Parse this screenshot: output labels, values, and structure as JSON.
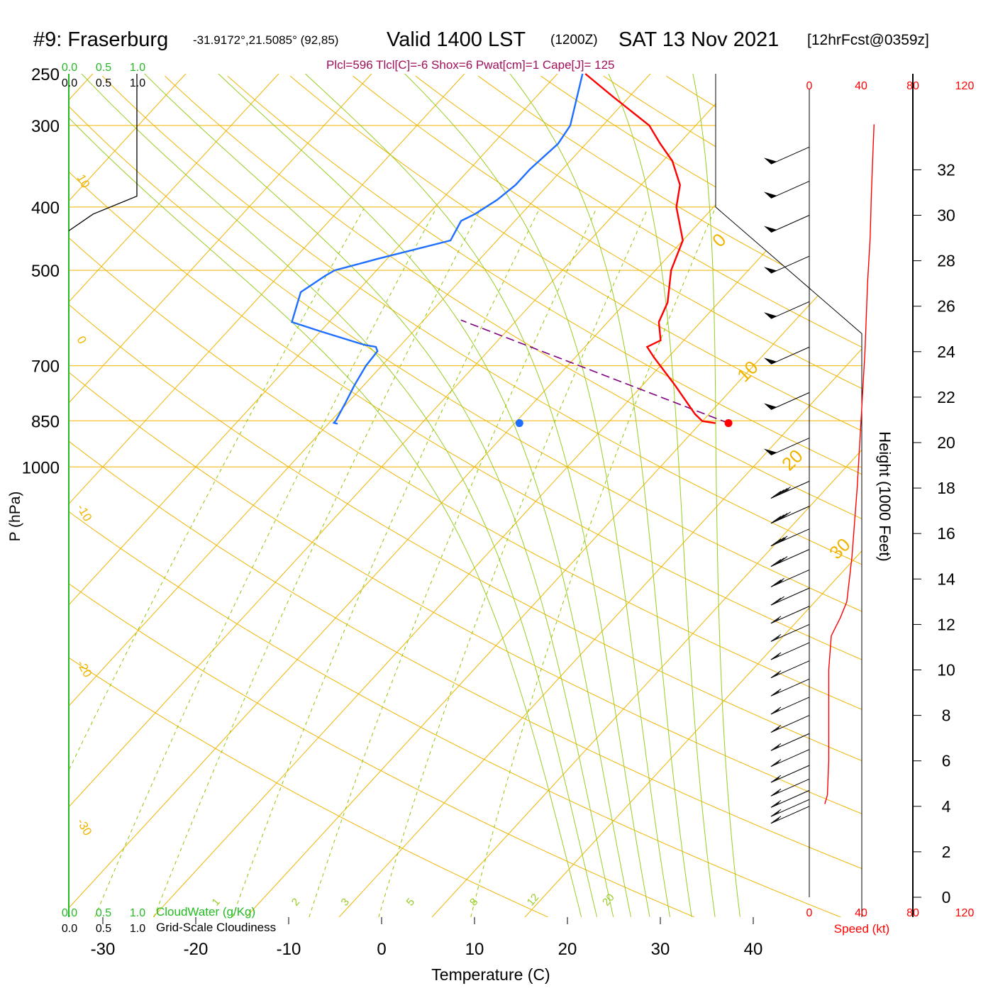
{
  "header": {
    "station": "#9: Fraserburg",
    "coords": "-31.9172°,21.5085° (92,85)",
    "valid": "Valid 1400 LST",
    "zulu": "(1200Z)",
    "date": "SAT 13 Nov 2021",
    "forecast": "[12hrFcst@0359z]"
  },
  "indices": "Plcl=596 Tlcl[C]=-6 Shox=6 Pwat[cm]=1 Cape[J]= 125",
  "colors": {
    "temperature": "#ff0000",
    "dewpoint": "#1e6eff",
    "parcel": "#800080",
    "isotherm": "#f0b400",
    "mixing_ratio": "#8cc800",
    "moist_adiabat": "#99cc22",
    "cloud_water": "#22bb22",
    "wind_speed": "#ff0000",
    "indices": "#a0105a"
  },
  "labels": {
    "pressure_axis": "P (hPa)",
    "temperature_axis": "Temperature (C)",
    "height_axis": "Height (1000 Feet)",
    "cloud_water": "CloudWater (g/Kg)",
    "cloudiness": "Grid-Scale Cloudiness",
    "speed": "Speed (kt)"
  },
  "chart_data": {
    "type": "line",
    "title": "#9: Fraserburg  Valid 1400 LST (1200Z) SAT 13 Nov 2021",
    "xlabel": "Temperature (C)",
    "ylabel": "P (hPa)",
    "pressure_ticks": [
      250,
      300,
      400,
      500,
      700,
      850,
      1000
    ],
    "temperature_ticks": [
      -30,
      -20,
      -10,
      0,
      10,
      20,
      30,
      40
    ],
    "height_ticks": [
      0,
      2,
      4,
      6,
      8,
      10,
      12,
      14,
      16,
      18,
      20,
      22,
      24,
      26,
      28,
      30,
      32
    ],
    "speed_ticks": [
      0,
      40,
      80,
      120
    ],
    "cloud_ticks": [
      "0.0",
      "0.5",
      "1.0"
    ],
    "isotherm_labels": [
      "-30",
      "-20",
      "-10",
      "0",
      "10",
      "20",
      "30",
      "0",
      "10",
      "20",
      "30"
    ],
    "mixing_ratio_labels": [
      "1",
      "2",
      "3",
      "5",
      "8",
      "12",
      "20"
    ],
    "series": [
      {
        "name": "Temperature",
        "values": [
          [
            857,
            31.6
          ],
          [
            851,
            30.0
          ],
          [
            830,
            28.5
          ],
          [
            750,
            23.5
          ],
          [
            680,
            18.5
          ],
          [
            655,
            16.7
          ],
          [
            640,
            17.5
          ],
          [
            600,
            15.5
          ],
          [
            560,
            14.5
          ],
          [
            500,
            11.7
          ],
          [
            450,
            10.0
          ],
          [
            400,
            6.0
          ],
          [
            370,
            4.2
          ],
          [
            340,
            1.0
          ],
          [
            320,
            -2.0
          ],
          [
            300,
            -5.0
          ],
          [
            270,
            -12.0
          ],
          [
            250,
            -17.0
          ]
        ]
      },
      {
        "name": "Dewpoint",
        "values": [
          [
            859,
            -9.0
          ],
          [
            856,
            -9.5
          ],
          [
            850,
            -9.5
          ],
          [
            800,
            -10.2
          ],
          [
            750,
            -11.0
          ],
          [
            700,
            -11.7
          ],
          [
            665,
            -11.9
          ],
          [
            655,
            -12.5
          ],
          [
            650,
            -14.0
          ],
          [
            620,
            -20.0
          ],
          [
            600,
            -24.0
          ],
          [
            540,
            -26.0
          ],
          [
            510,
            -25.0
          ],
          [
            500,
            -24.5
          ],
          [
            480,
            -21.0
          ],
          [
            450,
            -15.0
          ],
          [
            420,
            -15.8
          ],
          [
            410,
            -15.0
          ],
          [
            390,
            -14.0
          ],
          [
            370,
            -13.5
          ],
          [
            350,
            -13.5
          ],
          [
            320,
            -13.0
          ],
          [
            300,
            -13.5
          ],
          [
            250,
            -17.3
          ]
        ]
      },
      {
        "name": "Parcel",
        "values": [
          [
            857,
            33.0
          ],
          [
            596,
            -6.0
          ]
        ]
      }
    ],
    "surface_temperature_dot": [
      857,
      33.0
    ],
    "surface_dewpoint_dot": [
      857,
      10.5
    ],
    "cloudiness_profile": [
      [
        250,
        0.98
      ],
      [
        385,
        0.98
      ],
      [
        410,
        0.35
      ],
      [
        435,
        0.0
      ]
    ],
    "wind_speed_profile_kt": [
      [
        4.1,
        12
      ],
      [
        4.5,
        14
      ],
      [
        6,
        15
      ],
      [
        10,
        15
      ],
      [
        11.5,
        17
      ],
      [
        12.3,
        24
      ],
      [
        13,
        29
      ],
      [
        15,
        33
      ],
      [
        18,
        37
      ],
      [
        21,
        40
      ],
      [
        24,
        43
      ],
      [
        27,
        45
      ],
      [
        29,
        47
      ],
      [
        31,
        48
      ],
      [
        32.5,
        49
      ],
      [
        34,
        50
      ]
    ],
    "wind_barbs_height_kft": [
      4.0,
      4.3,
      4.7,
      5.2,
      5.8,
      6.5,
      7.2,
      8.0,
      8.8,
      9.6,
      10.4,
      11.2,
      12.0,
      12.8,
      13.6,
      14.4,
      15.3,
      16.2,
      17.2,
      18.3,
      20.2,
      22.2,
      24.2,
      26.2,
      28.2,
      30.0,
      31.5,
      33.0
    ],
    "wind_barbs_speed_kt": [
      15,
      15,
      15,
      15,
      15,
      15,
      15,
      15,
      15,
      15,
      15,
      15,
      15,
      15,
      20,
      25,
      30,
      35,
      40,
      45,
      50,
      50,
      50,
      50,
      50,
      50,
      50,
      50
    ]
  }
}
